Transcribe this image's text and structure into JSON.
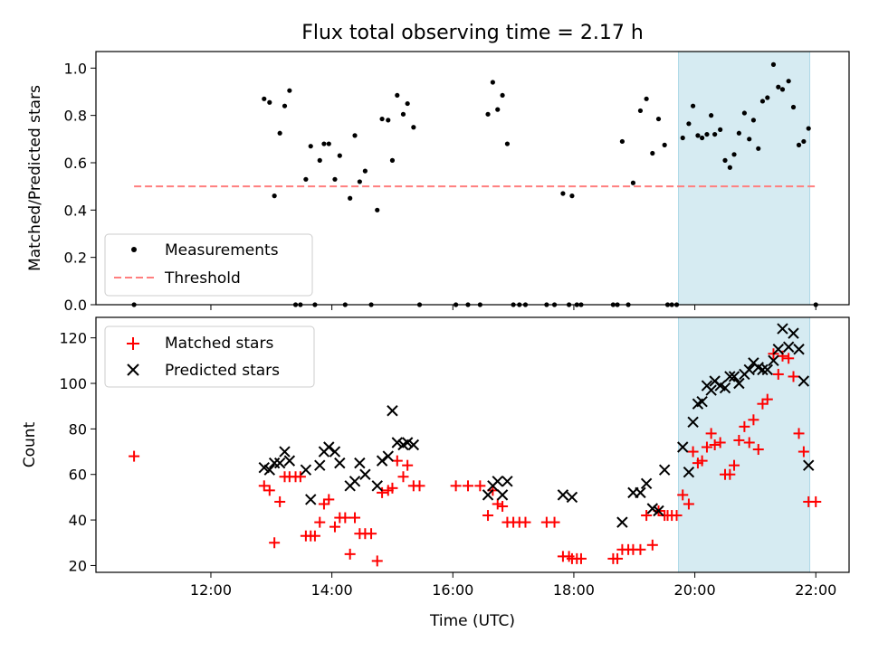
{
  "title": "Flux total observing time = 2.17 h",
  "x_axis": {
    "label": "Time (UTC)",
    "ticks": [
      {
        "h": 12,
        "label": "12:00"
      },
      {
        "h": 14,
        "label": "14:00"
      },
      {
        "h": 16,
        "label": "16:00"
      },
      {
        "h": 18,
        "label": "18:00"
      },
      {
        "h": 20,
        "label": "20:00"
      },
      {
        "h": 22,
        "label": "22:00"
      }
    ]
  },
  "colors": {
    "measurements": "#000000",
    "threshold": "#ff7f7f",
    "matched": "#ff0000",
    "predicted": "#000000",
    "highlight": "#add8e6"
  },
  "chart_data": [
    {
      "type": "scatter",
      "panel": "top",
      "xlim_hours": [
        10.1,
        22.55
      ],
      "ylabel": "Matched/Predicted stars",
      "ylim": [
        0,
        1.07
      ],
      "yticks": [
        {
          "v": 0.0,
          "label": "0.0"
        },
        {
          "v": 0.2,
          "label": "0.2"
        },
        {
          "v": 0.4,
          "label": "0.4"
        },
        {
          "v": 0.6,
          "label": "0.6"
        },
        {
          "v": 0.8,
          "label": "0.8"
        },
        {
          "v": 1.0,
          "label": "1.0"
        }
      ],
      "highlight_range_hours": [
        19.73,
        21.9
      ],
      "threshold": {
        "name": "Threshold",
        "y": 0.5,
        "x_range_hours": [
          10.73,
          22.0
        ]
      },
      "legend": {
        "position": "lower-left",
        "entries": [
          "Measurements",
          "Threshold"
        ]
      },
      "series": [
        {
          "name": "Measurements",
          "points": [
            [
              10.73,
              0.0
            ],
            [
              12.88,
              0.87
            ],
            [
              12.97,
              0.855
            ],
            [
              13.05,
              0.46
            ],
            [
              13.14,
              0.725
            ],
            [
              13.22,
              0.84
            ],
            [
              13.3,
              0.905
            ],
            [
              13.4,
              0.0
            ],
            [
              13.48,
              0.0
            ],
            [
              13.57,
              0.53
            ],
            [
              13.65,
              0.67
            ],
            [
              13.72,
              0.0
            ],
            [
              13.8,
              0.61
            ],
            [
              13.87,
              0.68
            ],
            [
              13.95,
              0.68
            ],
            [
              14.05,
              0.53
            ],
            [
              14.13,
              0.63
            ],
            [
              14.22,
              0.0
            ],
            [
              14.3,
              0.45
            ],
            [
              14.38,
              0.715
            ],
            [
              14.46,
              0.52
            ],
            [
              14.55,
              0.565
            ],
            [
              14.65,
              0.0
            ],
            [
              14.75,
              0.4
            ],
            [
              14.83,
              0.785
            ],
            [
              14.93,
              0.78
            ],
            [
              15.0,
              0.61
            ],
            [
              15.08,
              0.885
            ],
            [
              15.18,
              0.805
            ],
            [
              15.25,
              0.85
            ],
            [
              15.35,
              0.75
            ],
            [
              15.45,
              0.0
            ],
            [
              16.05,
              0.0
            ],
            [
              16.25,
              0.0
            ],
            [
              16.45,
              0.0
            ],
            [
              16.58,
              0.805
            ],
            [
              16.66,
              0.94
            ],
            [
              16.74,
              0.825
            ],
            [
              16.82,
              0.885
            ],
            [
              16.9,
              0.68
            ],
            [
              17.0,
              0.0
            ],
            [
              17.1,
              0.0
            ],
            [
              17.2,
              0.0
            ],
            [
              17.55,
              0.0
            ],
            [
              17.68,
              0.0
            ],
            [
              17.82,
              0.47
            ],
            [
              17.92,
              0.0
            ],
            [
              17.97,
              0.46
            ],
            [
              18.05,
              0.0
            ],
            [
              18.12,
              0.0
            ],
            [
              18.65,
              0.0
            ],
            [
              18.72,
              0.0
            ],
            [
              18.8,
              0.69
            ],
            [
              18.9,
              0.0
            ],
            [
              18.98,
              0.515
            ],
            [
              19.1,
              0.82
            ],
            [
              19.2,
              0.87
            ],
            [
              19.3,
              0.64
            ],
            [
              19.4,
              0.785
            ],
            [
              19.5,
              0.675
            ],
            [
              19.55,
              0.0
            ],
            [
              19.62,
              0.0
            ],
            [
              19.7,
              0.0
            ],
            [
              19.8,
              0.705
            ],
            [
              19.9,
              0.765
            ],
            [
              19.97,
              0.84
            ],
            [
              20.05,
              0.715
            ],
            [
              20.12,
              0.705
            ],
            [
              20.2,
              0.72
            ],
            [
              20.27,
              0.8
            ],
            [
              20.33,
              0.72
            ],
            [
              20.42,
              0.74
            ],
            [
              20.5,
              0.61
            ],
            [
              20.58,
              0.58
            ],
            [
              20.65,
              0.635
            ],
            [
              20.73,
              0.725
            ],
            [
              20.82,
              0.81
            ],
            [
              20.9,
              0.7
            ],
            [
              20.97,
              0.78
            ],
            [
              21.05,
              0.66
            ],
            [
              21.12,
              0.86
            ],
            [
              21.2,
              0.875
            ],
            [
              21.3,
              1.015
            ],
            [
              21.38,
              0.92
            ],
            [
              21.45,
              0.91
            ],
            [
              21.55,
              0.945
            ],
            [
              21.63,
              0.835
            ],
            [
              21.72,
              0.675
            ],
            [
              21.8,
              0.69
            ],
            [
              21.88,
              0.745
            ],
            [
              22.0,
              0.0
            ]
          ]
        }
      ]
    },
    {
      "type": "scatter",
      "panel": "bottom",
      "xlim_hours": [
        10.1,
        22.55
      ],
      "xlabel": "Time (UTC)",
      "ylabel": "Count",
      "ylim": [
        17,
        129
      ],
      "yticks": [
        {
          "v": 20,
          "label": "20"
        },
        {
          "v": 40,
          "label": "40"
        },
        {
          "v": 60,
          "label": "60"
        },
        {
          "v": 80,
          "label": "80"
        },
        {
          "v": 100,
          "label": "100"
        },
        {
          "v": 120,
          "label": "120"
        }
      ],
      "highlight_range_hours": [
        19.73,
        21.9
      ],
      "legend": {
        "position": "upper-left",
        "entries": [
          "Matched stars",
          "Predicted stars"
        ]
      },
      "series": [
        {
          "name": "Matched stars",
          "marker": "plus",
          "points": [
            [
              10.73,
              68
            ],
            [
              12.88,
              55
            ],
            [
              12.97,
              53
            ],
            [
              13.05,
              30
            ],
            [
              13.14,
              48
            ],
            [
              13.22,
              59
            ],
            [
              13.3,
              59
            ],
            [
              13.4,
              59
            ],
            [
              13.48,
              59
            ],
            [
              13.57,
              33
            ],
            [
              13.65,
              33
            ],
            [
              13.72,
              33
            ],
            [
              13.8,
              39
            ],
            [
              13.87,
              47
            ],
            [
              13.95,
              49
            ],
            [
              14.05,
              37
            ],
            [
              14.13,
              41
            ],
            [
              14.22,
              41
            ],
            [
              14.3,
              25
            ],
            [
              14.38,
              41
            ],
            [
              14.46,
              34
            ],
            [
              14.55,
              34
            ],
            [
              14.65,
              34
            ],
            [
              14.75,
              22
            ],
            [
              14.83,
              52
            ],
            [
              14.93,
              53
            ],
            [
              15.0,
              54
            ],
            [
              15.08,
              66
            ],
            [
              15.18,
              59
            ],
            [
              15.25,
              64
            ],
            [
              15.35,
              55
            ],
            [
              15.45,
              55
            ],
            [
              16.05,
              55
            ],
            [
              16.25,
              55
            ],
            [
              16.45,
              55
            ],
            [
              16.58,
              42
            ],
            [
              16.66,
              53
            ],
            [
              16.74,
              47
            ],
            [
              16.82,
              46
            ],
            [
              16.9,
              39
            ],
            [
              17.0,
              39
            ],
            [
              17.1,
              39
            ],
            [
              17.2,
              39
            ],
            [
              17.55,
              39
            ],
            [
              17.68,
              39
            ],
            [
              17.82,
              24
            ],
            [
              17.92,
              24
            ],
            [
              17.97,
              23
            ],
            [
              18.05,
              23
            ],
            [
              18.12,
              23
            ],
            [
              18.65,
              23
            ],
            [
              18.72,
              23
            ],
            [
              18.8,
              27
            ],
            [
              18.9,
              27
            ],
            [
              18.98,
              27
            ],
            [
              19.1,
              27
            ],
            [
              19.2,
              42
            ],
            [
              19.3,
              29
            ],
            [
              19.4,
              44
            ],
            [
              19.5,
              42
            ],
            [
              19.55,
              42
            ],
            [
              19.62,
              42
            ],
            [
              19.7,
              42
            ],
            [
              19.8,
              51
            ],
            [
              19.9,
              47
            ],
            [
              19.97,
              70
            ],
            [
              20.05,
              65
            ],
            [
              20.12,
              66
            ],
            [
              20.2,
              72
            ],
            [
              20.27,
              78
            ],
            [
              20.33,
              73
            ],
            [
              20.42,
              74
            ],
            [
              20.5,
              60
            ],
            [
              20.58,
              60
            ],
            [
              20.65,
              64
            ],
            [
              20.73,
              75
            ],
            [
              20.82,
              81
            ],
            [
              20.9,
              74
            ],
            [
              20.97,
              84
            ],
            [
              21.05,
              71
            ],
            [
              21.12,
              91
            ],
            [
              21.2,
              93
            ],
            [
              21.3,
              113
            ],
            [
              21.38,
              104
            ],
            [
              21.45,
              112
            ],
            [
              21.55,
              111
            ],
            [
              21.63,
              103
            ],
            [
              21.72,
              78
            ],
            [
              21.8,
              70
            ],
            [
              21.88,
              48
            ],
            [
              22.0,
              48
            ]
          ]
        },
        {
          "name": "Predicted stars",
          "marker": "x",
          "points": [
            [
              12.88,
              63
            ],
            [
              12.97,
              62
            ],
            [
              13.05,
              65
            ],
            [
              13.14,
              65
            ],
            [
              13.22,
              70
            ],
            [
              13.3,
              66
            ],
            [
              13.57,
              62
            ],
            [
              13.65,
              49
            ],
            [
              13.8,
              64
            ],
            [
              13.87,
              70
            ],
            [
              13.95,
              72
            ],
            [
              14.05,
              70
            ],
            [
              14.13,
              65
            ],
            [
              14.3,
              55
            ],
            [
              14.38,
              57
            ],
            [
              14.46,
              65
            ],
            [
              14.55,
              60
            ],
            [
              14.75,
              55
            ],
            [
              14.83,
              66
            ],
            [
              14.93,
              68
            ],
            [
              15.0,
              88
            ],
            [
              15.08,
              74
            ],
            [
              15.18,
              73
            ],
            [
              15.25,
              74
            ],
            [
              15.35,
              73
            ],
            [
              16.58,
              51
            ],
            [
              16.66,
              55
            ],
            [
              16.74,
              57
            ],
            [
              16.82,
              51
            ],
            [
              16.9,
              57
            ],
            [
              17.82,
              51
            ],
            [
              17.97,
              50
            ],
            [
              18.8,
              39
            ],
            [
              18.98,
              52
            ],
            [
              19.1,
              52
            ],
            [
              19.2,
              56
            ],
            [
              19.3,
              45
            ],
            [
              19.4,
              44
            ],
            [
              19.5,
              62
            ],
            [
              19.8,
              72
            ],
            [
              19.9,
              61
            ],
            [
              19.97,
              83
            ],
            [
              20.05,
              91
            ],
            [
              20.12,
              92
            ],
            [
              20.2,
              99
            ],
            [
              20.27,
              97
            ],
            [
              20.33,
              101
            ],
            [
              20.42,
              99
            ],
            [
              20.5,
              98
            ],
            [
              20.58,
              103
            ],
            [
              20.65,
              103
            ],
            [
              20.73,
              100
            ],
            [
              20.82,
              104
            ],
            [
              20.9,
              106
            ],
            [
              20.97,
              109
            ],
            [
              21.05,
              107
            ],
            [
              21.12,
              106
            ],
            [
              21.2,
              106
            ],
            [
              21.3,
              110
            ],
            [
              21.38,
              115
            ],
            [
              21.45,
              124
            ],
            [
              21.55,
              116
            ],
            [
              21.63,
              122
            ],
            [
              21.72,
              115
            ],
            [
              21.8,
              101
            ],
            [
              21.88,
              64
            ]
          ]
        }
      ]
    }
  ]
}
